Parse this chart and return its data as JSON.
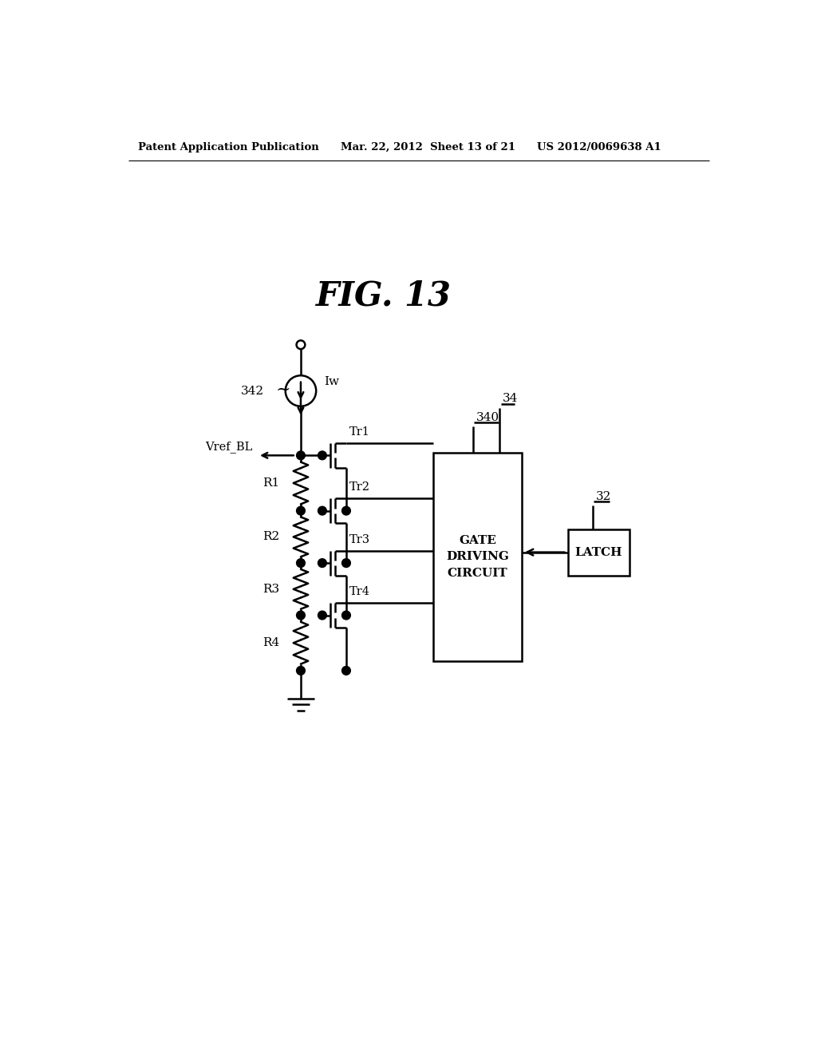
{
  "bg_color": "#ffffff",
  "line_color": "#000000",
  "header_left": "Patent Application Publication",
  "header_mid": "Mar. 22, 2012  Sheet 13 of 21",
  "header_right": "US 2012/0069638 A1",
  "fig_label": "FIG. 13",
  "label_34": "34",
  "label_340": "340",
  "label_342": "342",
  "label_32": "32",
  "label_Iw": "Iw",
  "label_Vref_BL": "Vref_BL",
  "label_R1": "R1",
  "label_R2": "R2",
  "label_R3": "R3",
  "label_R4": "R4",
  "label_Tr1": "Tr1",
  "label_Tr2": "Tr2",
  "label_Tr3": "Tr3",
  "label_Tr4": "Tr4",
  "label_gate": "GATE\nDRIVING\nCIRCUIT",
  "label_latch": "LATCH"
}
